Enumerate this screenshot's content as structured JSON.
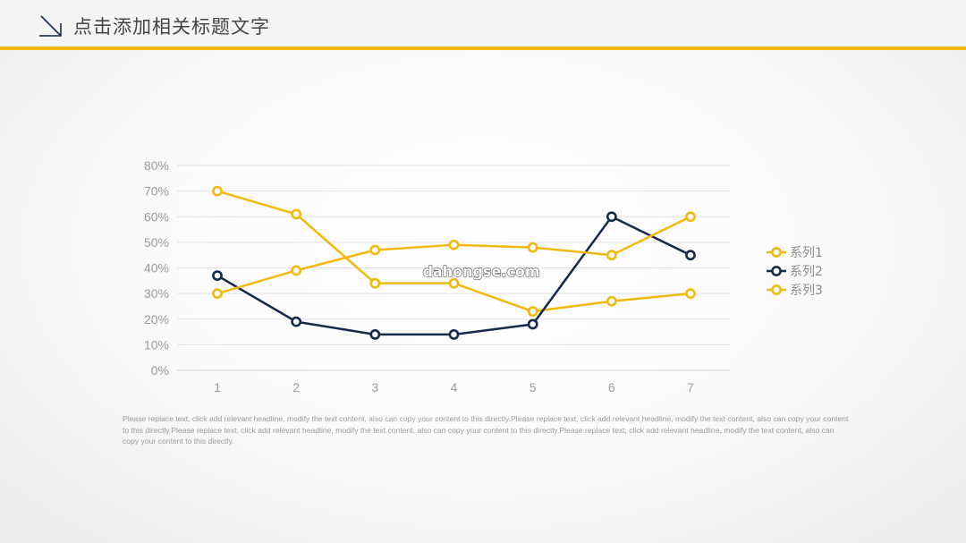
{
  "header": {
    "title": "点击添加相关标题文字",
    "accent_color": "#f2b90c",
    "icon": "arrow-down-right-icon"
  },
  "chart_data": {
    "type": "line",
    "categories": [
      "1",
      "2",
      "3",
      "4",
      "5",
      "6",
      "7"
    ],
    "series": [
      {
        "name": "系列1",
        "values": [
          70,
          61,
          34,
          34,
          23,
          27,
          30
        ],
        "color": "#f2b90c"
      },
      {
        "name": "系列2",
        "values": [
          37,
          19,
          14,
          14,
          18,
          60,
          45
        ],
        "color": "#15294d"
      },
      {
        "name": "系列3",
        "values": [
          30,
          39,
          47,
          49,
          48,
          45,
          60
        ],
        "color": "#f2b90c"
      }
    ],
    "ylim": [
      0,
      80
    ],
    "y_ticks": [
      "0%",
      "10%",
      "20%",
      "30%",
      "40%",
      "50%",
      "60%",
      "70%",
      "80%"
    ],
    "grid": true,
    "legend_position": "right",
    "watermark": "dahongse.com"
  },
  "body_text": "Please replace text, click add relevant headline, modify the text content, also can copy your content to this directly.Please replace text, click add relevant headline, modify the text content, also can copy your content to this directly.Please replace text, click add relevant headline, modify the text content, also can copy your content to this directly.Please replace text, click add relevant headline, modify the text content, also can copy your content to this directly."
}
